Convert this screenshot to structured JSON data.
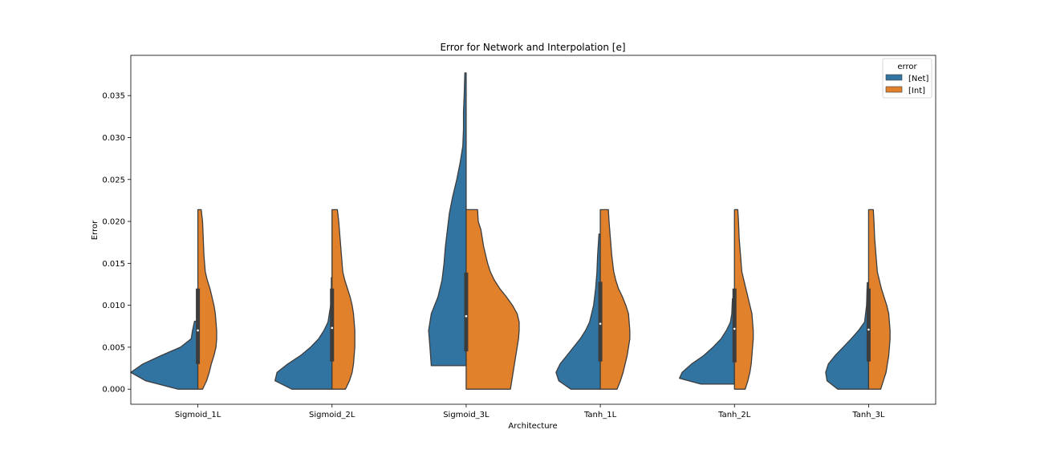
{
  "chart_data": {
    "type": "violin",
    "title": "Error for Network and Interpolation [e]",
    "xlabel": "Architecture",
    "ylabel": "Error",
    "ylim": [
      -0.0018,
      0.0398
    ],
    "yticks": [
      "0.000",
      "0.005",
      "0.010",
      "0.015",
      "0.020",
      "0.025",
      "0.030",
      "0.035"
    ],
    "ytick_values": [
      0.0,
      0.005,
      0.01,
      0.015,
      0.02,
      0.025,
      0.03,
      0.035
    ],
    "categories": [
      "Sigmoid_1L",
      "Sigmoid_2L",
      "Sigmoid_3L",
      "Tanh_1L",
      "Tanh_2L",
      "Tanh_3L"
    ],
    "grid": false,
    "legend": {
      "title": "error",
      "placement": "top-right",
      "entries": [
        {
          "label": "[Net]",
          "color": "#3274a1"
        },
        {
          "label": "[Int]",
          "color": "#e1812c"
        }
      ]
    },
    "series": [
      {
        "name": "[Net]",
        "side": "left",
        "color": "#3274a1",
        "violins": [
          {
            "min": 0.0,
            "max": 0.0081,
            "profile": [
              [
                0.0,
                0.3
              ],
              [
                0.001,
                0.78
              ],
              [
                0.002,
                1.0
              ],
              [
                0.003,
                0.82
              ],
              [
                0.004,
                0.55
              ],
              [
                0.005,
                0.26
              ],
              [
                0.006,
                0.1
              ],
              [
                0.007,
                0.08
              ],
              [
                0.0081,
                0.05
              ]
            ]
          },
          {
            "min": 0.0,
            "max": 0.0133,
            "profile": [
              [
                0.0,
                0.6
              ],
              [
                0.001,
                0.85
              ],
              [
                0.002,
                0.82
              ],
              [
                0.003,
                0.66
              ],
              [
                0.004,
                0.47
              ],
              [
                0.005,
                0.32
              ],
              [
                0.006,
                0.2
              ],
              [
                0.007,
                0.12
              ],
              [
                0.008,
                0.06
              ],
              [
                0.01,
                0.02
              ],
              [
                0.012,
                0.01
              ],
              [
                0.0133,
                0.01
              ]
            ]
          },
          {
            "min": 0.0028,
            "max": 0.0377,
            "profile": [
              [
                0.0028,
                0.52
              ],
              [
                0.005,
                0.54
              ],
              [
                0.007,
                0.56
              ],
              [
                0.009,
                0.52
              ],
              [
                0.011,
                0.42
              ],
              [
                0.013,
                0.36
              ],
              [
                0.015,
                0.33
              ],
              [
                0.017,
                0.31
              ],
              [
                0.019,
                0.28
              ],
              [
                0.021,
                0.25
              ],
              [
                0.023,
                0.2
              ],
              [
                0.025,
                0.14
              ],
              [
                0.027,
                0.09
              ],
              [
                0.029,
                0.05
              ],
              [
                0.031,
                0.04
              ],
              [
                0.033,
                0.04
              ],
              [
                0.035,
                0.03
              ],
              [
                0.0377,
                0.02
              ]
            ]
          },
          {
            "min": 0.0,
            "max": 0.0185,
            "profile": [
              [
                0.0,
                0.44
              ],
              [
                0.001,
                0.62
              ],
              [
                0.002,
                0.66
              ],
              [
                0.003,
                0.6
              ],
              [
                0.004,
                0.5
              ],
              [
                0.005,
                0.4
              ],
              [
                0.006,
                0.3
              ],
              [
                0.007,
                0.22
              ],
              [
                0.008,
                0.16
              ],
              [
                0.01,
                0.1
              ],
              [
                0.012,
                0.07
              ],
              [
                0.014,
                0.05
              ],
              [
                0.016,
                0.04
              ],
              [
                0.0185,
                0.02
              ]
            ]
          },
          {
            "min": 0.0006,
            "max": 0.0108,
            "profile": [
              [
                0.0006,
                0.5
              ],
              [
                0.0013,
                0.82
              ],
              [
                0.002,
                0.78
              ],
              [
                0.003,
                0.64
              ],
              [
                0.004,
                0.46
              ],
              [
                0.005,
                0.32
              ],
              [
                0.006,
                0.2
              ],
              [
                0.007,
                0.12
              ],
              [
                0.008,
                0.06
              ],
              [
                0.009,
                0.04
              ],
              [
                0.0108,
                0.03
              ]
            ]
          },
          {
            "min": 0.0,
            "max": 0.0127,
            "profile": [
              [
                0.0,
                0.46
              ],
              [
                0.001,
                0.62
              ],
              [
                0.002,
                0.64
              ],
              [
                0.003,
                0.6
              ],
              [
                0.004,
                0.5
              ],
              [
                0.005,
                0.38
              ],
              [
                0.006,
                0.26
              ],
              [
                0.007,
                0.15
              ],
              [
                0.008,
                0.06
              ],
              [
                0.01,
                0.03
              ],
              [
                0.0127,
                0.02
              ]
            ]
          }
        ],
        "box": [
          {
            "q1": 0.003,
            "median": 0.007,
            "q3": 0.012
          },
          {
            "q1": 0.0033,
            "median": 0.0073,
            "q3": 0.012
          },
          {
            "q1": 0.0045,
            "median": 0.0087,
            "q3": 0.0139
          },
          {
            "q1": 0.0033,
            "median": 0.0078,
            "q3": 0.0128
          },
          {
            "q1": 0.0032,
            "median": 0.0072,
            "q3": 0.012
          },
          {
            "q1": 0.0033,
            "median": 0.0071,
            "q3": 0.012
          }
        ]
      },
      {
        "name": "[Int]",
        "side": "right",
        "color": "#e1812c",
        "violins": [
          {
            "min": 0.0,
            "max": 0.0214,
            "profile": [
              [
                0.0,
                0.07
              ],
              [
                0.001,
                0.13
              ],
              [
                0.002,
                0.17
              ],
              [
                0.003,
                0.2
              ],
              [
                0.004,
                0.24
              ],
              [
                0.005,
                0.27
              ],
              [
                0.006,
                0.28
              ],
              [
                0.007,
                0.28
              ],
              [
                0.008,
                0.27
              ],
              [
                0.009,
                0.26
              ],
              [
                0.01,
                0.24
              ],
              [
                0.011,
                0.21
              ],
              [
                0.012,
                0.18
              ],
              [
                0.013,
                0.14
              ],
              [
                0.014,
                0.11
              ],
              [
                0.016,
                0.09
              ],
              [
                0.018,
                0.08
              ],
              [
                0.02,
                0.07
              ],
              [
                0.0214,
                0.05
              ]
            ]
          },
          {
            "min": 0.0,
            "max": 0.0214,
            "profile": [
              [
                0.0,
                0.2
              ],
              [
                0.001,
                0.26
              ],
              [
                0.002,
                0.3
              ],
              [
                0.003,
                0.32
              ],
              [
                0.004,
                0.33
              ],
              [
                0.005,
                0.34
              ],
              [
                0.006,
                0.34
              ],
              [
                0.007,
                0.34
              ],
              [
                0.008,
                0.33
              ],
              [
                0.009,
                0.32
              ],
              [
                0.01,
                0.3
              ],
              [
                0.011,
                0.27
              ],
              [
                0.012,
                0.23
              ],
              [
                0.013,
                0.19
              ],
              [
                0.014,
                0.16
              ],
              [
                0.016,
                0.14
              ],
              [
                0.018,
                0.12
              ],
              [
                0.02,
                0.1
              ],
              [
                0.0214,
                0.08
              ]
            ]
          },
          {
            "min": 0.0,
            "max": 0.0214,
            "profile": [
              [
                0.0,
                0.66
              ],
              [
                0.001,
                0.68
              ],
              [
                0.002,
                0.7
              ],
              [
                0.003,
                0.72
              ],
              [
                0.004,
                0.74
              ],
              [
                0.005,
                0.76
              ],
              [
                0.006,
                0.78
              ],
              [
                0.007,
                0.79
              ],
              [
                0.008,
                0.79
              ],
              [
                0.009,
                0.76
              ],
              [
                0.01,
                0.69
              ],
              [
                0.011,
                0.6
              ],
              [
                0.012,
                0.5
              ],
              [
                0.013,
                0.42
              ],
              [
                0.014,
                0.36
              ],
              [
                0.015,
                0.32
              ],
              [
                0.016,
                0.29
              ],
              [
                0.017,
                0.26
              ],
              [
                0.018,
                0.24
              ],
              [
                0.019,
                0.22
              ],
              [
                0.02,
                0.18
              ],
              [
                0.0214,
                0.17
              ]
            ]
          },
          {
            "min": 0.0,
            "max": 0.0214,
            "profile": [
              [
                0.0,
                0.25
              ],
              [
                0.001,
                0.3
              ],
              [
                0.002,
                0.34
              ],
              [
                0.003,
                0.37
              ],
              [
                0.004,
                0.4
              ],
              [
                0.005,
                0.42
              ],
              [
                0.006,
                0.44
              ],
              [
                0.007,
                0.44
              ],
              [
                0.008,
                0.43
              ],
              [
                0.009,
                0.42
              ],
              [
                0.01,
                0.38
              ],
              [
                0.011,
                0.33
              ],
              [
                0.012,
                0.27
              ],
              [
                0.013,
                0.23
              ],
              [
                0.014,
                0.2
              ],
              [
                0.016,
                0.17
              ],
              [
                0.018,
                0.15
              ],
              [
                0.02,
                0.13
              ],
              [
                0.0214,
                0.12
              ]
            ]
          },
          {
            "min": 0.0,
            "max": 0.0214,
            "profile": [
              [
                0.0,
                0.16
              ],
              [
                0.001,
                0.2
              ],
              [
                0.002,
                0.23
              ],
              [
                0.003,
                0.25
              ],
              [
                0.004,
                0.26
              ],
              [
                0.005,
                0.27
              ],
              [
                0.006,
                0.28
              ],
              [
                0.007,
                0.28
              ],
              [
                0.008,
                0.27
              ],
              [
                0.009,
                0.26
              ],
              [
                0.01,
                0.23
              ],
              [
                0.011,
                0.2
              ],
              [
                0.012,
                0.17
              ],
              [
                0.013,
                0.14
              ],
              [
                0.014,
                0.11
              ],
              [
                0.016,
                0.09
              ],
              [
                0.018,
                0.07
              ],
              [
                0.02,
                0.06
              ],
              [
                0.0214,
                0.05
              ]
            ]
          },
          {
            "min": 0.0,
            "max": 0.0214,
            "profile": [
              [
                0.0,
                0.18
              ],
              [
                0.001,
                0.22
              ],
              [
                0.002,
                0.26
              ],
              [
                0.003,
                0.28
              ],
              [
                0.004,
                0.3
              ],
              [
                0.005,
                0.31
              ],
              [
                0.006,
                0.32
              ],
              [
                0.007,
                0.32
              ],
              [
                0.008,
                0.31
              ],
              [
                0.009,
                0.3
              ],
              [
                0.01,
                0.27
              ],
              [
                0.011,
                0.23
              ],
              [
                0.012,
                0.19
              ],
              [
                0.013,
                0.16
              ],
              [
                0.014,
                0.13
              ],
              [
                0.016,
                0.11
              ],
              [
                0.018,
                0.09
              ],
              [
                0.02,
                0.08
              ],
              [
                0.0214,
                0.07
              ]
            ]
          }
        ]
      }
    ]
  }
}
